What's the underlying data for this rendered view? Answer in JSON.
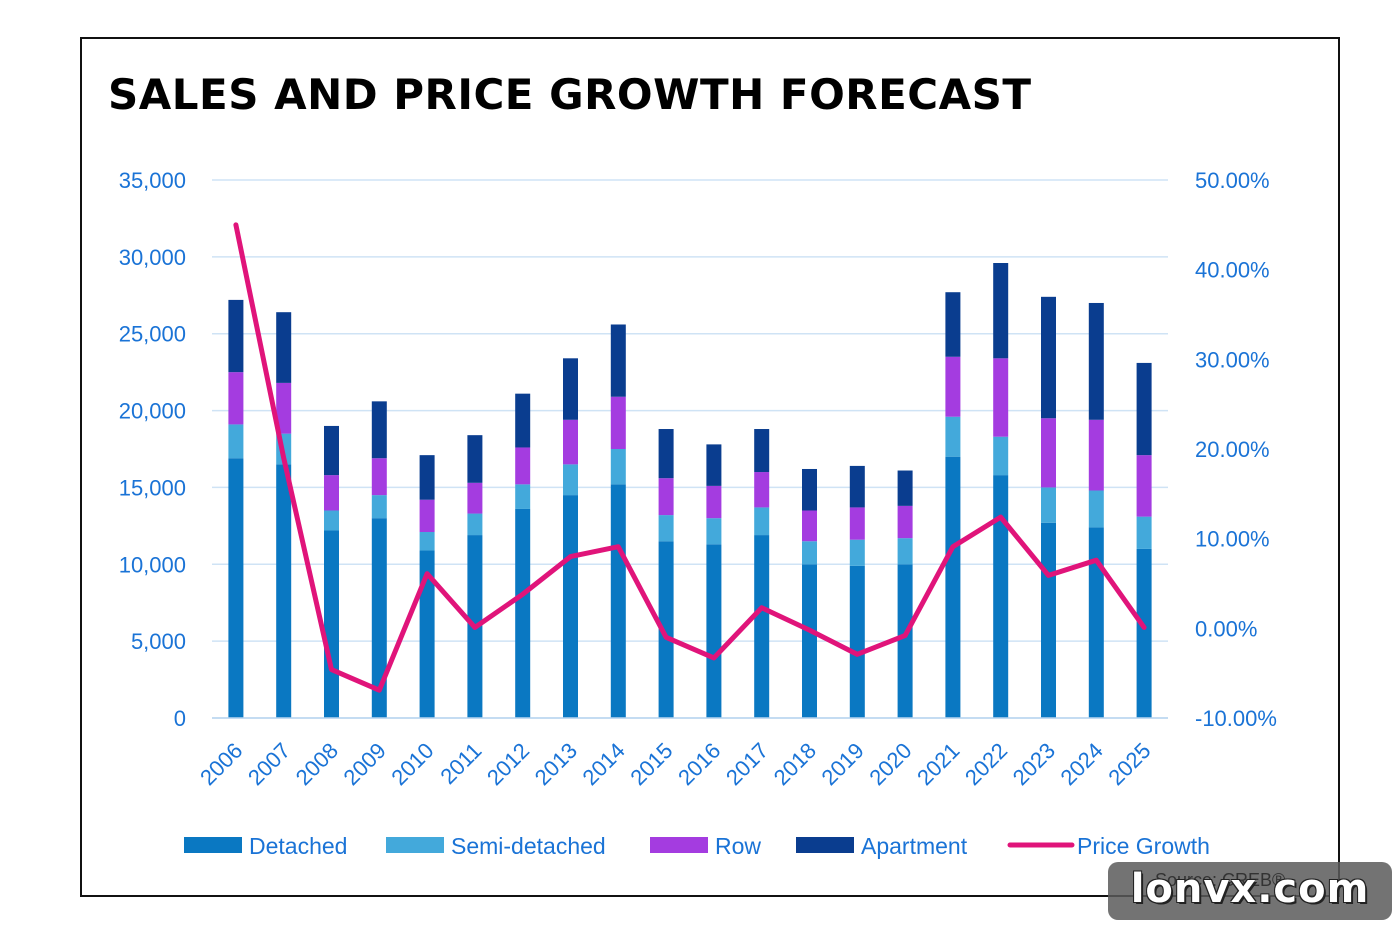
{
  "title": "SALES AND PRICE GROWTH FORECAST",
  "source": "Source: CREB®",
  "watermark": "lonvx.com",
  "colors": {
    "detached": "#0a78c2",
    "semi_detached": "#43a9db",
    "row": "#a43ce0",
    "apartment": "#0a3d8f",
    "price_growth": "#e0147a",
    "axis_text": "#1a73d6",
    "grid": "#cfe3f5"
  },
  "chart_data": {
    "type": "bar",
    "stacked": true,
    "title": "SALES AND PRICE GROWTH FORECAST",
    "categories": [
      "2006",
      "2007",
      "2008",
      "2009",
      "2010",
      "2011",
      "2012",
      "2013",
      "2014",
      "2015",
      "2016",
      "2017",
      "2018",
      "2019",
      "2020",
      "2021",
      "2022",
      "2023",
      "2024",
      "2025"
    ],
    "series": [
      {
        "name": "Detached",
        "type": "bar",
        "values": [
          16900,
          16500,
          12200,
          13000,
          10900,
          11900,
          13600,
          14500,
          15200,
          11500,
          11300,
          11900,
          10000,
          9900,
          10000,
          17000,
          15800,
          12700,
          12400,
          11000
        ]
      },
      {
        "name": "Semi-detached",
        "type": "bar",
        "values": [
          2200,
          2000,
          1300,
          1500,
          1200,
          1400,
          1600,
          2000,
          2300,
          1700,
          1700,
          1800,
          1500,
          1700,
          1700,
          2600,
          2500,
          2300,
          2400,
          2100
        ]
      },
      {
        "name": "Row",
        "type": "bar",
        "values": [
          3400,
          3300,
          2300,
          2400,
          2100,
          2000,
          2400,
          2900,
          3400,
          2400,
          2100,
          2300,
          2000,
          2100,
          2100,
          3900,
          5100,
          4500,
          4600,
          4000
        ]
      },
      {
        "name": "Apartment",
        "type": "bar",
        "values": [
          4700,
          4600,
          3200,
          3700,
          2900,
          3100,
          3500,
          4000,
          4700,
          3200,
          2700,
          2800,
          2700,
          2700,
          2300,
          4200,
          6200,
          7900,
          7600,
          6000
        ]
      },
      {
        "name": "Price Growth",
        "type": "line",
        "axis": "right",
        "values": [
          45.0,
          19.0,
          -4.6,
          -6.9,
          6.1,
          0.1,
          3.8,
          8.0,
          9.1,
          -1.0,
          -3.3,
          2.3,
          -0.2,
          -2.9,
          -0.8,
          9.1,
          12.4,
          5.9,
          7.6,
          0.1
        ]
      }
    ],
    "y_left": {
      "ylim": [
        0,
        35000
      ],
      "ticks": [
        "0",
        "5,000",
        "10,000",
        "15,000",
        "20,000",
        "25,000",
        "30,000",
        "35,000"
      ]
    },
    "y_right": {
      "ylim": [
        -10,
        50
      ],
      "ticks": [
        "-10.00%",
        "0.00%",
        "10.00%",
        "20.00%",
        "30.00%",
        "40.00%",
        "50.00%"
      ]
    },
    "grid": true,
    "legend": {
      "position": "bottom",
      "entries": [
        "Detached",
        "Semi-detached",
        "Row",
        "Apartment",
        "Price Growth"
      ]
    }
  }
}
